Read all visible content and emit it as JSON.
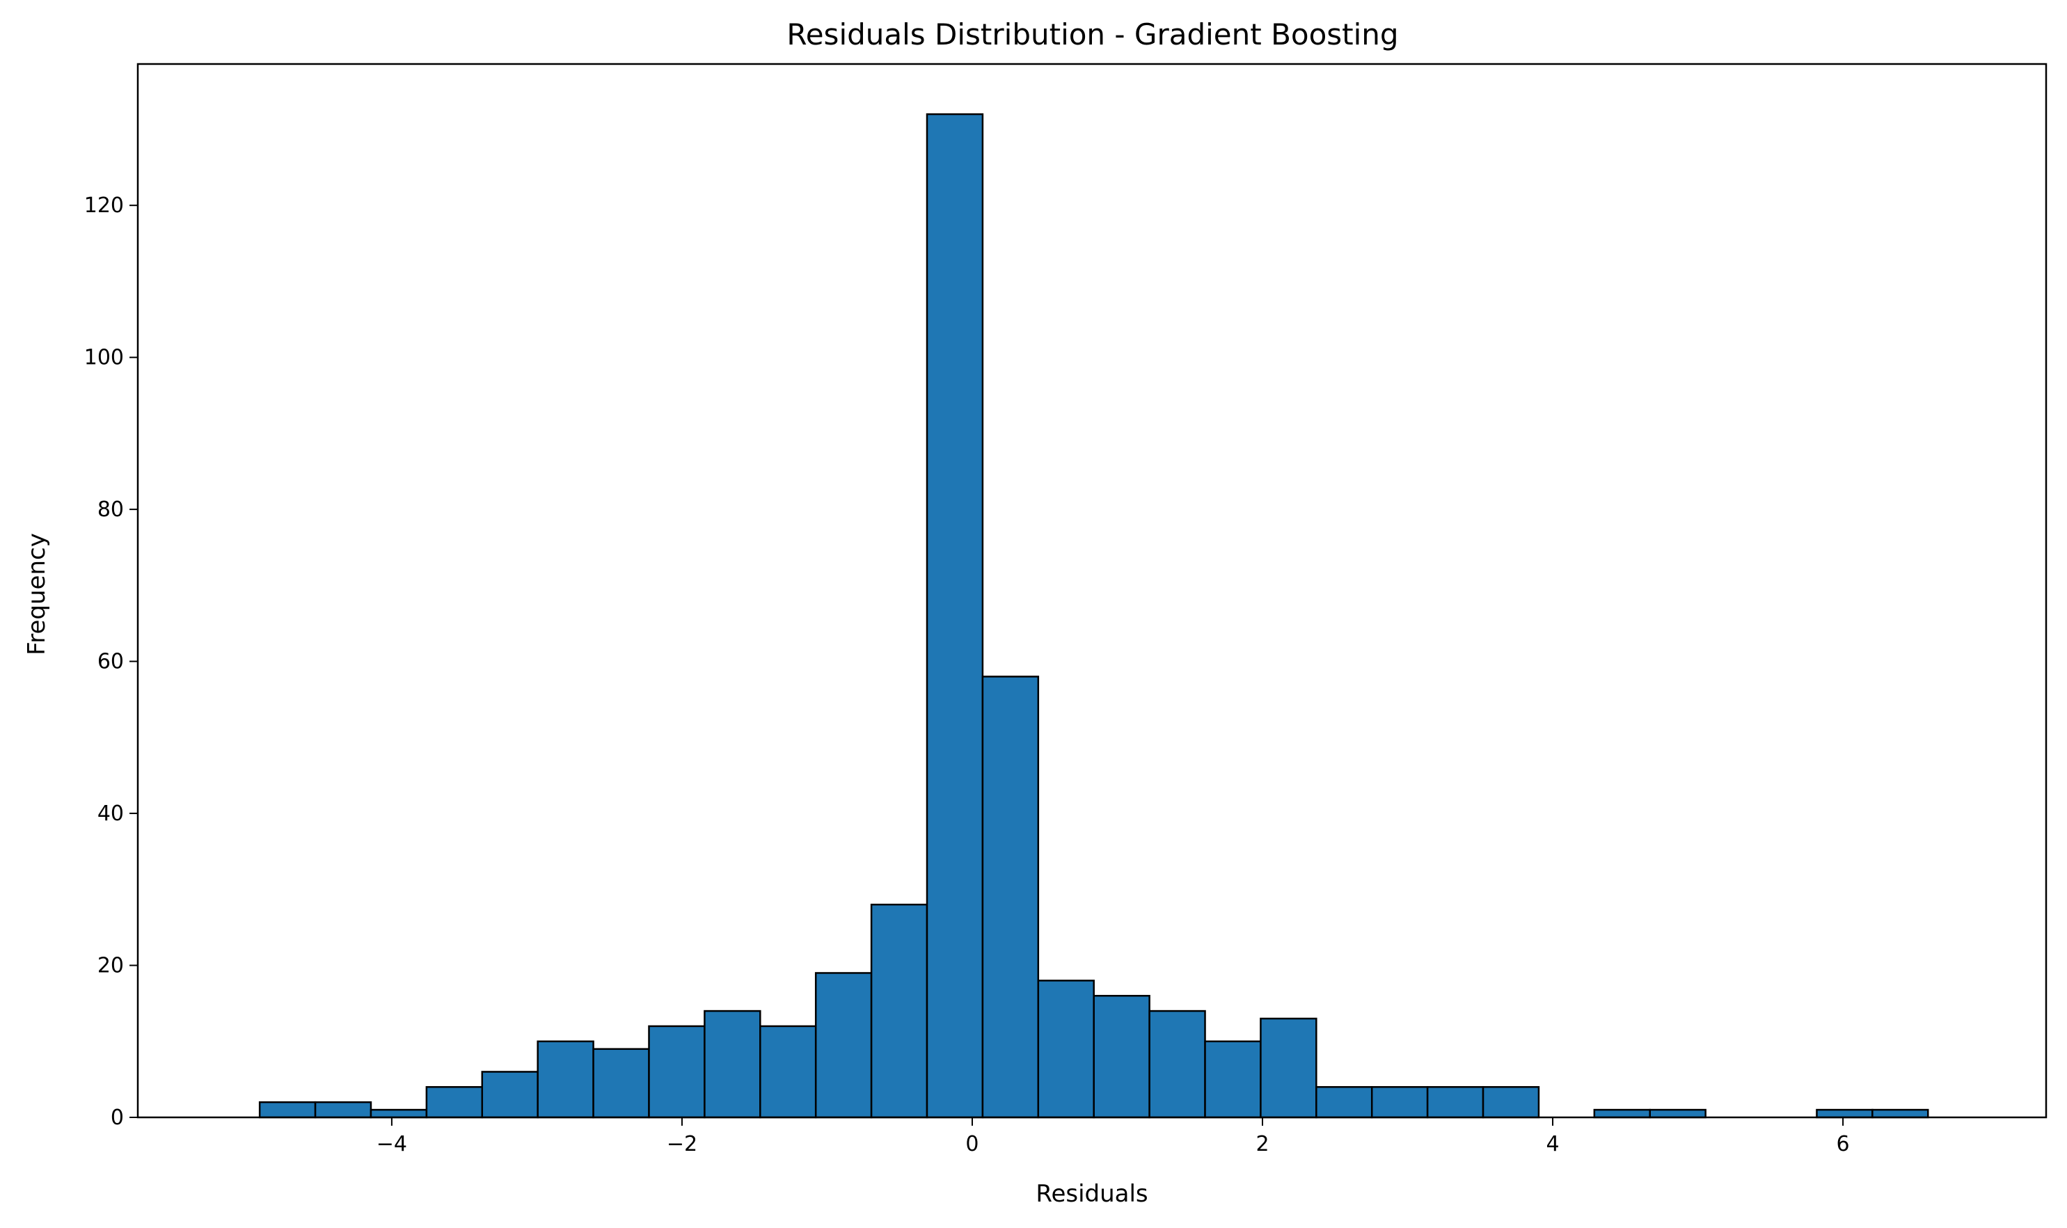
{
  "chart_data": {
    "type": "bar",
    "subtype": "histogram",
    "title": "Residuals Distribution - Gradient Boosting",
    "xlabel": "Residuals",
    "ylabel": "Frequency",
    "xlim": [
      -5.75,
      7.4
    ],
    "ylim": [
      0,
      138.6
    ],
    "bin_start": -4.91,
    "bin_width": 0.3832,
    "values": [
      2,
      2,
      1,
      4,
      6,
      10,
      9,
      12,
      14,
      12,
      19,
      28,
      132,
      58,
      18,
      16,
      14,
      10,
      13,
      4,
      4,
      4,
      4,
      0,
      1,
      1,
      0,
      0,
      1,
      1
    ],
    "xticks": [
      -4,
      -2,
      0,
      2,
      4,
      6
    ],
    "xtick_labels": [
      "−4",
      "−2",
      "0",
      "2",
      "4",
      "6"
    ],
    "yticks": [
      0,
      20,
      40,
      60,
      80,
      100,
      120
    ],
    "ytick_labels": [
      "0",
      "20",
      "40",
      "60",
      "80",
      "100",
      "120"
    ],
    "bar_color": "#1f77b4",
    "edge_color": "#000000",
    "grid": false,
    "legend": "none"
  }
}
